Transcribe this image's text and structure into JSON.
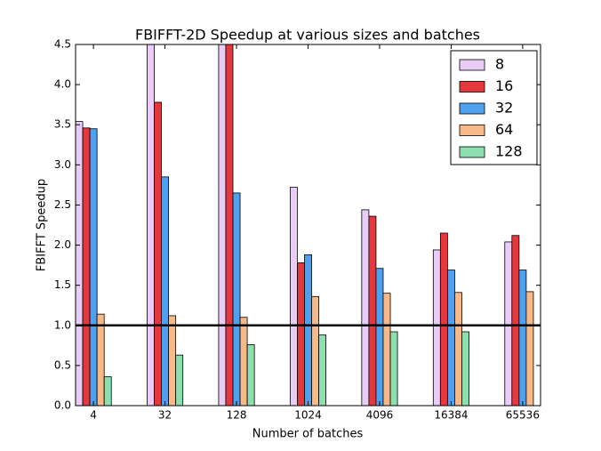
{
  "chart_data": {
    "type": "bar",
    "title": "FBIFFT-2D Speedup at various sizes and batches",
    "x_label": "Number of batches",
    "y_label": "FBIFFT Speedup",
    "categories": [
      "4",
      "32",
      "128",
      "1024",
      "4096",
      "16384",
      "65536"
    ],
    "series": [
      {
        "name": "8",
        "color": "#e9cdf7",
        "values": [
          3.54,
          4.5,
          4.5,
          2.72,
          2.44,
          1.94,
          2.04
        ]
      },
      {
        "name": "16",
        "color": "#e5383c",
        "values": [
          3.46,
          3.78,
          4.5,
          1.78,
          2.36,
          2.15,
          2.12
        ]
      },
      {
        "name": "32",
        "color": "#4fa0ef",
        "values": [
          3.45,
          2.85,
          2.65,
          1.88,
          1.71,
          1.69,
          1.69
        ]
      },
      {
        "name": "64",
        "color": "#f7b987",
        "values": [
          1.14,
          1.12,
          1.1,
          1.36,
          1.4,
          1.41,
          1.42
        ]
      },
      {
        "name": "128",
        "color": "#8ddfb0",
        "values": [
          0.36,
          0.63,
          0.76,
          0.88,
          0.92,
          0.92,
          null
        ]
      }
    ],
    "ylim": [
      0,
      4.5
    ],
    "yticks": [
      {
        "value": 0,
        "label": "0.0"
      },
      0.5,
      {
        "value": 1,
        "label": "1.0"
      },
      1.5,
      {
        "value": 2,
        "label": "2.0"
      },
      2.5,
      {
        "value": 3,
        "label": "3.0"
      },
      3.5,
      {
        "value": 4,
        "label": "4.0"
      },
      4.5
    ],
    "reference_line": 1.0,
    "legend": "upper right"
  }
}
